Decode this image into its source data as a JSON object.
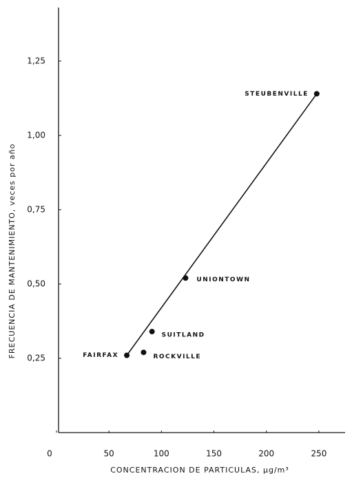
{
  "chart_data": {
    "type": "scatter",
    "x_label": "CONCENTRACION DE PARTICULAS, μg/m³",
    "y_label": "FRECUENCIA DE MANTENIMIENTO, veces por año",
    "labels": [
      "FAIRFAX",
      "ROCKVILLE",
      "SUITLAND",
      "UNIONTOWN",
      "STEUBENVILLE"
    ],
    "x": [
      67,
      83,
      91,
      123,
      248
    ],
    "values": [
      0.26,
      0.27,
      0.34,
      0.52,
      1.14
    ],
    "color": "#111111",
    "fit_line": {
      "x": [
        67,
        248
      ],
      "y": [
        0.26,
        1.14
      ]
    },
    "xlim": [
      0,
      275
    ],
    "ylim": [
      0,
      1.43
    ],
    "xticks": [
      0,
      50,
      100,
      150,
      200,
      250
    ],
    "yticks": [
      {
        "value": 0.25,
        "label": "0,25"
      },
      {
        "value": 0.5,
        "label": "0,50"
      },
      {
        "value": 0.75,
        "label": "0,75"
      },
      {
        "value": 1.0,
        "label": "1,00"
      },
      {
        "value": 1.25,
        "label": "1,25"
      }
    ],
    "grid": false
  }
}
